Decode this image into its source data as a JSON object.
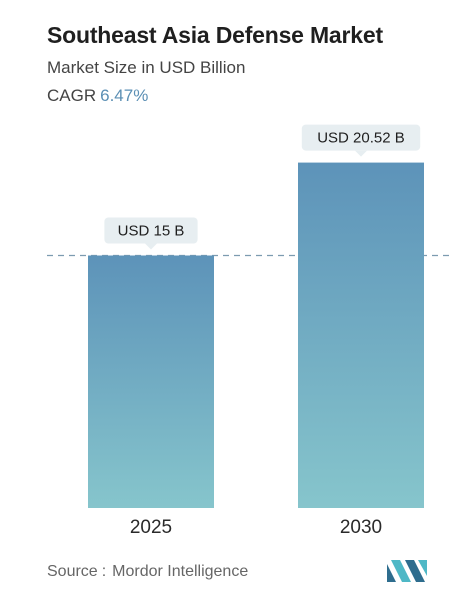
{
  "header": {
    "title": "Southeast Asia Defense Market",
    "subtitle": "Market Size in USD Billion",
    "cagr_label": "CAGR",
    "cagr_value": "6.47%"
  },
  "chart_data": {
    "type": "bar",
    "title": "Southeast Asia Defense Market",
    "subtitle": "Market Size in USD Billion",
    "categories": [
      "2025",
      "2030"
    ],
    "values": [
      15,
      20.52
    ],
    "data_labels": [
      "USD 15 B",
      "USD 20.52 B"
    ],
    "ylabel": "",
    "xlabel": "",
    "ylim": [
      0,
      24
    ],
    "grid": false,
    "reference_line": {
      "value": 15,
      "style": "dashed"
    },
    "colors": {
      "bar_top": "#5d93b9",
      "bar_bottom": "#86c5cc",
      "label_bg": "#e7eef1",
      "ref_line": "#7c9bb0"
    }
  },
  "footer": {
    "source_label": "Source",
    "source_value": "Mordor Intelligence",
    "logo_icon": "mordor-intelligence-logo-icon"
  }
}
